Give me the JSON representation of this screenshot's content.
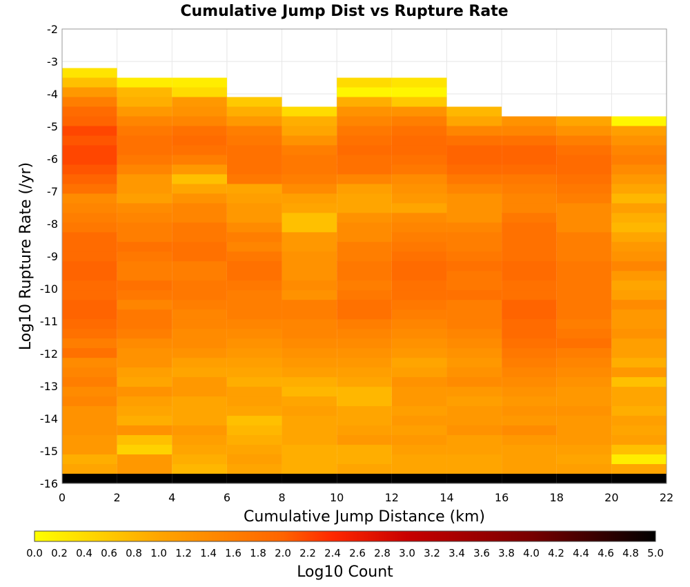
{
  "chart_data": {
    "type": "heatmap",
    "title": "Cumulative Jump Dist vs Rupture Rate",
    "xlabel": "Cumulative Jump Distance (km)",
    "ylabel": "Log10 Rupture Rate (/yr)",
    "xlim": [
      0,
      22
    ],
    "ylim": [
      -16,
      -2
    ],
    "x_ticks": [
      "0",
      "2",
      "4",
      "6",
      "8",
      "10",
      "12",
      "14",
      "16",
      "18",
      "20",
      "22"
    ],
    "y_ticks": [
      "-2",
      "-3",
      "-4",
      "-5",
      "-6",
      "-7",
      "-8",
      "-9",
      "-10",
      "-11",
      "-12",
      "-13",
      "-14",
      "-15",
      "-16"
    ],
    "x_bin_edges": [
      0,
      2,
      4,
      6,
      8,
      10,
      12,
      14,
      16,
      18,
      20,
      22
    ],
    "y_bin_width": 0.2976,
    "y_min": -16,
    "grid": true,
    "colorbar": {
      "label": "Log10 Count",
      "range": [
        0.0,
        5.0
      ],
      "ticks": [
        "0.0",
        "0.2",
        "0.4",
        "0.6",
        "0.8",
        "1.0",
        "1.2",
        "1.4",
        "1.6",
        "1.8",
        "2.0",
        "2.2",
        "2.4",
        "2.6",
        "2.8",
        "3.0",
        "3.2",
        "3.4",
        "3.6",
        "3.8",
        "4.0",
        "4.2",
        "4.4",
        "4.6",
        "4.8",
        "5.0"
      ],
      "scheme": "yellow-orange-red-black"
    },
    "columns": [
      {
        "x_range": [
          0,
          2
        ],
        "log10_count_from_top": [
          0.3,
          0.7,
          1.2,
          1.6,
          1.9,
          2.0,
          2.2,
          2.1,
          2.2,
          2.2,
          2.1,
          2.0,
          1.8,
          1.4,
          1.5,
          1.6,
          1.7,
          1.9,
          1.9,
          1.9,
          2.0,
          2.0,
          1.9,
          1.9,
          2.0,
          2.0,
          1.9,
          1.8,
          1.6,
          1.8,
          1.4,
          1.5,
          1.6,
          1.4,
          1.5,
          1.3,
          1.3,
          1.3,
          1.2,
          1.2,
          0.9,
          1.0,
          5.0
        ]
      },
      {
        "x_range": [
          2,
          4
        ],
        "log10_count_from_top": [
          0.2,
          0.8,
          0.9,
          1.2,
          1.5,
          1.7,
          1.8,
          1.8,
          1.7,
          1.5,
          1.2,
          1.2,
          1.1,
          1.4,
          1.5,
          1.6,
          1.6,
          1.8,
          1.7,
          1.6,
          1.6,
          1.8,
          1.7,
          1.5,
          1.7,
          1.7,
          1.6,
          1.4,
          1.3,
          1.3,
          1.1,
          1.0,
          1.3,
          1.1,
          1.0,
          0.9,
          1.3,
          0.7,
          0.5,
          1.2,
          1.2,
          5.0
        ]
      },
      {
        "x_range": [
          4,
          6
        ],
        "log10_count_from_top": [
          0.2,
          0.4,
          1.2,
          1.3,
          1.5,
          1.8,
          1.9,
          1.8,
          1.6,
          1.2,
          0.7,
          1.0,
          1.3,
          1.5,
          1.5,
          1.7,
          1.7,
          1.8,
          1.8,
          1.6,
          1.6,
          1.7,
          1.7,
          1.6,
          1.5,
          1.5,
          1.4,
          1.4,
          1.3,
          1.1,
          1.0,
          1.2,
          1.2,
          1.0,
          1.0,
          1.0,
          1.2,
          1.1,
          1.0,
          0.9,
          0.8,
          5.0
        ]
      },
      {
        "x_range": [
          6,
          8
        ],
        "log10_count_from_top": [
          0.6,
          0.9,
          1.2,
          1.6,
          1.7,
          1.8,
          1.8,
          1.8,
          1.7,
          1.0,
          1.1,
          1.2,
          1.2,
          1.4,
          1.6,
          1.5,
          1.7,
          1.8,
          1.8,
          1.7,
          1.6,
          1.6,
          1.6,
          1.5,
          1.4,
          1.3,
          1.2,
          1.1,
          1.0,
          0.9,
          1.1,
          1.1,
          1.0,
          0.7,
          0.8,
          0.9,
          1.0,
          1.1,
          1.0,
          5.0
        ]
      },
      {
        "x_range": [
          8,
          10
        ],
        "log10_count_from_top": [
          0.4,
          0.9,
          1.0,
          1.3,
          1.6,
          1.7,
          1.7,
          1.6,
          1.4,
          1.1,
          1.0,
          0.7,
          0.7,
          1.2,
          1.2,
          1.3,
          1.3,
          1.3,
          1.4,
          1.3,
          1.6,
          1.6,
          1.5,
          1.5,
          1.4,
          1.3,
          1.2,
          1.1,
          0.9,
          0.8,
          1.0,
          1.1,
          1.0,
          1.0,
          1.0,
          0.9,
          0.9,
          0.9,
          5.0
        ]
      },
      {
        "x_range": [
          10,
          12
        ],
        "log10_count_from_top": [
          0.4,
          0.1,
          0.9,
          1.3,
          1.5,
          1.7,
          1.8,
          1.9,
          1.8,
          1.8,
          1.5,
          1.1,
          1.0,
          1.0,
          1.3,
          1.4,
          1.4,
          1.6,
          1.6,
          1.7,
          1.7,
          1.6,
          1.7,
          1.8,
          1.8,
          1.6,
          1.5,
          1.4,
          1.3,
          1.2,
          1.1,
          1.0,
          0.8,
          0.8,
          1.0,
          1.0,
          1.1,
          1.2,
          0.9,
          0.9,
          1.0,
          5.0
        ]
      },
      {
        "x_range": [
          12,
          14
        ],
        "log10_count_from_top": [
          0.3,
          0.1,
          0.6,
          1.3,
          1.6,
          1.8,
          1.9,
          1.9,
          1.8,
          1.7,
          1.4,
          1.3,
          1.2,
          1.0,
          1.4,
          1.5,
          1.6,
          1.7,
          1.8,
          1.9,
          1.9,
          1.8,
          1.8,
          1.7,
          1.6,
          1.5,
          1.4,
          1.3,
          1.2,
          1.0,
          1.1,
          1.3,
          1.2,
          1.2,
          1.1,
          1.2,
          1.1,
          1.2,
          1.1,
          1.0,
          1.0,
          5.0
        ]
      },
      {
        "x_range": [
          14,
          16
        ],
        "log10_count_from_top": [
          0.8,
          1.0,
          1.5,
          1.8,
          2.0,
          2.0,
          1.9,
          1.7,
          1.5,
          1.3,
          1.3,
          1.3,
          1.5,
          1.6,
          1.6,
          1.7,
          1.8,
          1.7,
          1.7,
          1.8,
          1.6,
          1.6,
          1.6,
          1.5,
          1.4,
          1.3,
          1.2,
          1.3,
          1.4,
          1.2,
          1.1,
          1.2,
          1.2,
          1.3,
          1.1,
          1.1,
          1.0,
          1.0,
          5.0
        ]
      },
      {
        "x_range": [
          16,
          18
        ],
        "log10_count_from_top": [
          1.3,
          1.5,
          1.8,
          2.0,
          2.0,
          1.9,
          1.7,
          1.6,
          1.5,
          1.5,
          1.7,
          1.8,
          1.8,
          1.8,
          1.8,
          1.9,
          1.9,
          1.8,
          1.8,
          2.0,
          2.0,
          1.9,
          1.9,
          1.8,
          1.7,
          1.6,
          1.5,
          1.4,
          1.3,
          1.2,
          1.3,
          1.2,
          1.4,
          1.2,
          1.1,
          1.1,
          1.1,
          5.0
        ]
      },
      {
        "x_range": [
          18,
          20
        ],
        "log10_count_from_top": [
          1.0,
          1.3,
          1.6,
          1.8,
          1.9,
          1.9,
          1.8,
          1.7,
          1.6,
          1.4,
          1.4,
          1.4,
          1.6,
          1.6,
          1.6,
          1.7,
          1.7,
          1.7,
          1.7,
          1.7,
          1.7,
          1.6,
          1.7,
          1.8,
          1.6,
          1.5,
          1.4,
          1.3,
          1.2,
          1.2,
          1.3,
          1.2,
          1.2,
          1.2,
          1.1,
          1.0,
          1.1,
          5.0
        ]
      },
      {
        "x_range": [
          20,
          22
        ],
        "log10_count_from_top": [
          0.1,
          1.1,
          1.3,
          1.5,
          1.6,
          1.4,
          1.2,
          1.0,
          0.8,
          1.1,
          0.9,
          0.8,
          1.0,
          1.2,
          1.3,
          1.5,
          1.2,
          1.0,
          1.1,
          1.4,
          1.2,
          1.2,
          1.3,
          1.1,
          1.1,
          0.9,
          1.2,
          0.7,
          1.0,
          1.0,
          0.9,
          1.1,
          1.0,
          1.1,
          0.7,
          0.2,
          1.0,
          5.0
        ]
      }
    ]
  }
}
